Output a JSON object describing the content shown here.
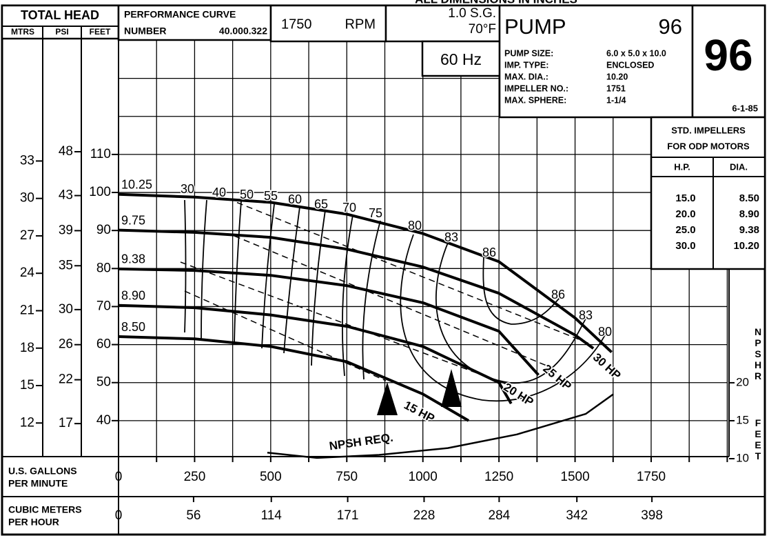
{
  "header": {
    "top_note": "ALL DIMENSIONS IN INCHES",
    "total_head": "TOTAL HEAD",
    "head_units": [
      "MTRS",
      "PSI",
      "FEET"
    ],
    "curve_label": "PERFORMANCE  CURVE",
    "number_label": "NUMBER",
    "curve_number": "40.000.322",
    "speed": "1750",
    "speed_unit": "RPM",
    "sg": "1.0  S.G.",
    "temp": "70°F",
    "freq": "60  Hz",
    "pump_label": "PUMP",
    "pump_number": "96",
    "specs": [
      [
        "PUMP SIZE:",
        "6.0 x 5.0 x 10.0"
      ],
      [
        "IMP. TYPE:",
        "ENCLOSED"
      ],
      [
        "MAX. DIA.:",
        "10.20"
      ],
      [
        "IMPELLER NO.:",
        "1751"
      ],
      [
        "MAX. SPHERE:",
        "1-1/4"
      ]
    ],
    "big_number": "96",
    "date": "6-1-85"
  },
  "impeller_table": {
    "title": [
      "STD.   IMPELLERS",
      "FOR ODP MOTORS"
    ],
    "columns": [
      "H.P.",
      "DIA."
    ],
    "rows": [
      [
        "15.0",
        "8.50"
      ],
      [
        "20.0",
        "8.90"
      ],
      [
        "25.0",
        "9.38"
      ],
      [
        "30.0",
        "10.20"
      ]
    ]
  },
  "chart_data": {
    "type": "line",
    "xlabel": [
      "U.S.   GALLONS",
      "PER    MINUTE"
    ],
    "x2label": [
      "CUBIC  METERS",
      "PER  HOUR"
    ],
    "xlim": [
      0,
      2000
    ],
    "xticks": [
      0,
      250,
      500,
      750,
      1000,
      1250,
      1500,
      1750
    ],
    "xminor": [
      0,
      125,
      250,
      375,
      500,
      625,
      750,
      875,
      1000,
      1125,
      1250,
      1375,
      1500,
      1625,
      1750,
      1875,
      2000
    ],
    "x2lim": [
      0,
      454.2
    ],
    "x2ticks": [
      0,
      56,
      114,
      171,
      228,
      284,
      342,
      398
    ],
    "ylim": [
      30,
      140
    ],
    "yticks": [
      40,
      50,
      60,
      70,
      80,
      90,
      100,
      110
    ],
    "ygrid": [
      40,
      50,
      60,
      70,
      80,
      90,
      100,
      110,
      120,
      130
    ],
    "psilim": [
      13.0,
      60.7
    ],
    "psiticks": [
      17,
      22,
      26,
      30,
      35,
      39,
      43,
      48
    ],
    "mlim": [
      9.14,
      42.67
    ],
    "mticks": [
      12,
      15,
      18,
      21,
      24,
      27,
      30,
      33
    ],
    "y2lim": [
      10,
      65.1
    ],
    "y2ticks": [
      10,
      15,
      20
    ],
    "y2label": "NPSHR",
    "y2unit": "FEET",
    "grid": true,
    "series": [
      {
        "name": "10.25",
        "color": "#000000",
        "x": [
          0,
          250,
          500,
          750,
          1000,
          1250,
          1500,
          1620
        ],
        "values": [
          99.5,
          98.8,
          97.4,
          94.3,
          89.2,
          81.8,
          67,
          58
        ]
      },
      {
        "name": "9.75",
        "color": "#000000",
        "x": [
          0,
          250,
          500,
          750,
          1000,
          1250,
          1500,
          1560
        ],
        "values": [
          90.1,
          89.5,
          88.2,
          85.1,
          80.4,
          73.5,
          62.5,
          59
        ]
      },
      {
        "name": "9.38",
        "color": "#000000",
        "x": [
          0,
          250,
          500,
          750,
          1000,
          1250,
          1380
        ],
        "values": [
          79.9,
          79.5,
          78.2,
          75.5,
          71,
          63.5,
          52
        ]
      },
      {
        "name": "8.90",
        "color": "#000000",
        "x": [
          0,
          250,
          500,
          750,
          1000,
          1250,
          1290
        ],
        "values": [
          70.3,
          69.7,
          67.8,
          64.8,
          59.5,
          50,
          44.5
        ]
      },
      {
        "name": "8.50",
        "color": "#000000",
        "x": [
          0,
          250,
          500,
          750,
          1000,
          1150
        ],
        "values": [
          62.1,
          61.5,
          59.5,
          55.5,
          47,
          40
        ]
      },
      {
        "name": "NPSH  REQ.",
        "color": "#000000",
        "axis": "y2",
        "x": [
          489,
          652,
          856,
          1082,
          1309,
          1535,
          1626
        ],
        "values": [
          10.8,
          10.1,
          10.5,
          11.4,
          13.2,
          15.9,
          18.5
        ]
      }
    ],
    "efficiency": [
      30,
      40,
      50,
      55,
      60,
      65,
      70,
      75,
      80,
      83,
      86,
      86,
      83,
      80
    ],
    "hp_lines": [
      "15  HP",
      "20  HP",
      "25  HP",
      "30  HP"
    ]
  }
}
